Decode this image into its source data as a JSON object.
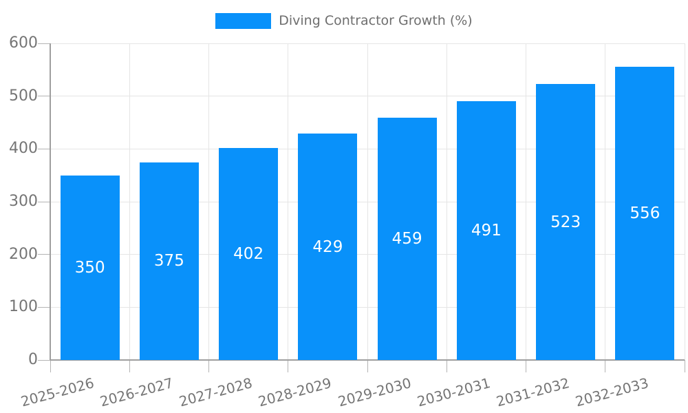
{
  "chart_data": {
    "type": "bar",
    "title": "",
    "legend_label": "Diving Contractor Growth (%)",
    "legend_position": "top-center",
    "categories": [
      "2025-2026",
      "2026-2027",
      "2027-2028",
      "2028-2029",
      "2029-2030",
      "2030-2031",
      "2031-2032",
      "2032-2033"
    ],
    "values": [
      350,
      375,
      402,
      429,
      459,
      491,
      523,
      556
    ],
    "value_labels": [
      "350",
      "375",
      "402",
      "429",
      "459",
      "491",
      "523",
      "556"
    ],
    "xlabel": "",
    "ylabel": "",
    "ylim": [
      0,
      600
    ],
    "yticks": [
      0,
      100,
      200,
      300,
      400,
      500,
      600
    ],
    "grid": true,
    "colors": {
      "bar": "#0991fa",
      "value_label": "#ffffff",
      "axis_text": "#757575",
      "legend_text": "#6e6e6e",
      "gridline": "#e5e5e5",
      "axis_line": "#9e9e9e",
      "tick": "#b3b3b3"
    }
  }
}
